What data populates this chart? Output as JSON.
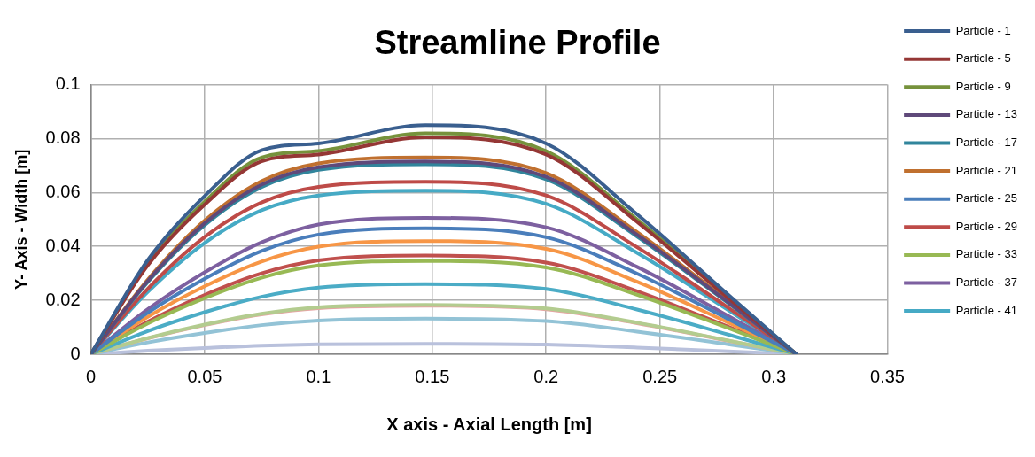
{
  "chart_data": {
    "type": "line",
    "title": "Streamline Profile",
    "xlabel": "X axis - Axial Length [m]",
    "ylabel": "Y- Axis - Width [m]",
    "x": [
      0,
      0.025,
      0.05,
      0.075,
      0.1,
      0.147,
      0.2,
      0.24,
      0.28,
      0.31
    ],
    "xlim": [
      0,
      0.35
    ],
    "xticks": [
      0,
      0.05,
      0.1,
      0.15,
      0.2,
      0.25,
      0.3,
      0.35
    ],
    "ylim": [
      0,
      0.1
    ],
    "yticks": [
      0,
      0.02,
      0.04,
      0.06,
      0.08,
      0.1
    ],
    "grid": true,
    "legend": "right",
    "marker": "none",
    "line_style": "solid",
    "series": [
      {
        "name": "Particle - 1",
        "color": "#3a5f8f",
        "values": [
          0,
          0.0349,
          0.0587,
          0.0757,
          0.0782,
          0.085,
          0.0782,
          0.0519,
          0.0221,
          0
        ]
      },
      {
        "name": "Particle - 5",
        "color": "#953735",
        "values": [
          0,
          0.033,
          0.0555,
          0.0716,
          0.0741,
          0.0805,
          0.0741,
          0.0491,
          0.0209,
          0
        ]
      },
      {
        "name": "Particle - 9",
        "color": "#76923c",
        "values": [
          0,
          0.0336,
          0.0566,
          0.073,
          0.0754,
          0.082,
          0.0754,
          0.05,
          0.0213,
          0
        ]
      },
      {
        "name": "Particle - 13",
        "color": "#5f497a",
        "values": [
          0,
          0.0272,
          0.0486,
          0.0629,
          0.0694,
          0.0715,
          0.0658,
          0.0443,
          0.0193,
          0
        ]
      },
      {
        "name": "Particle - 17",
        "color": "#31859c",
        "values": [
          0,
          0.0268,
          0.0479,
          0.062,
          0.0684,
          0.0705,
          0.0649,
          0.0437,
          0.019,
          0
        ]
      },
      {
        "name": "Particle - 21",
        "color": "#c0702f",
        "values": [
          0,
          0.0277,
          0.0496,
          0.0642,
          0.0708,
          0.073,
          0.0672,
          0.0453,
          0.0197,
          0
        ]
      },
      {
        "name": "Particle - 25",
        "color": "#4a7ebb",
        "values": [
          0,
          0.0154,
          0.028,
          0.0383,
          0.0444,
          0.0467,
          0.0434,
          0.0299,
          0.0131,
          0
        ]
      },
      {
        "name": "Particle - 29",
        "color": "#be4b48",
        "values": [
          0,
          0.0243,
          0.0435,
          0.0563,
          0.0621,
          0.064,
          0.0589,
          0.0397,
          0.0173,
          0
        ]
      },
      {
        "name": "Particle - 33",
        "color": "#98b954",
        "values": [
          0,
          0.0114,
          0.0208,
          0.0284,
          0.0329,
          0.0346,
          0.0322,
          0.0221,
          0.0097,
          0
        ]
      },
      {
        "name": "Particle - 37",
        "color": "#7d60a0",
        "values": [
          0,
          0.0167,
          0.0304,
          0.0415,
          0.0481,
          0.0506,
          0.0471,
          0.0324,
          0.0142,
          0
        ]
      },
      {
        "name": "Particle - 41",
        "color": "#46aac5",
        "values": [
          0,
          0.0231,
          0.0413,
          0.0534,
          0.0589,
          0.0607,
          0.0558,
          0.0376,
          0.0164,
          0
        ]
      },
      {
        "color": "#f79646",
        "values": [
          0,
          0.0139,
          0.0252,
          0.0344,
          0.0399,
          0.042,
          0.0391,
          0.0269,
          0.0118,
          0
        ]
      },
      {
        "color": "#c0504d",
        "values": [
          0,
          0.0121,
          0.022,
          0.03,
          0.0348,
          0.0366,
          0.034,
          0.0234,
          0.0102,
          0
        ]
      },
      {
        "color": "#4bacc6",
        "values": [
          0,
          0.0086,
          0.0156,
          0.0213,
          0.0247,
          0.026,
          0.0242,
          0.0166,
          0.0073,
          0
        ]
      },
      {
        "color": "#b3cc8f",
        "values": [
          0,
          0.006,
          0.011,
          0.015,
          0.0174,
          0.0183,
          0.017,
          0.0117,
          0.0051,
          0
        ]
      },
      {
        "color": "#e6a5a4",
        "values": [
          0,
          0.0059,
          0.0108,
          0.0148,
          0.0171,
          0.018,
          0.0167,
          0.0115,
          0.005,
          0
        ]
      },
      {
        "color": "#93c3d6",
        "values": [
          0,
          0.0044,
          0.0079,
          0.0108,
          0.0125,
          0.0132,
          0.0123,
          0.0084,
          0.0037,
          0
        ]
      },
      {
        "color": "#b9c1dc",
        "values": [
          0,
          0.0013,
          0.0023,
          0.0032,
          0.0037,
          0.0039,
          0.0036,
          0.0025,
          0.0011,
          0
        ]
      }
    ]
  }
}
